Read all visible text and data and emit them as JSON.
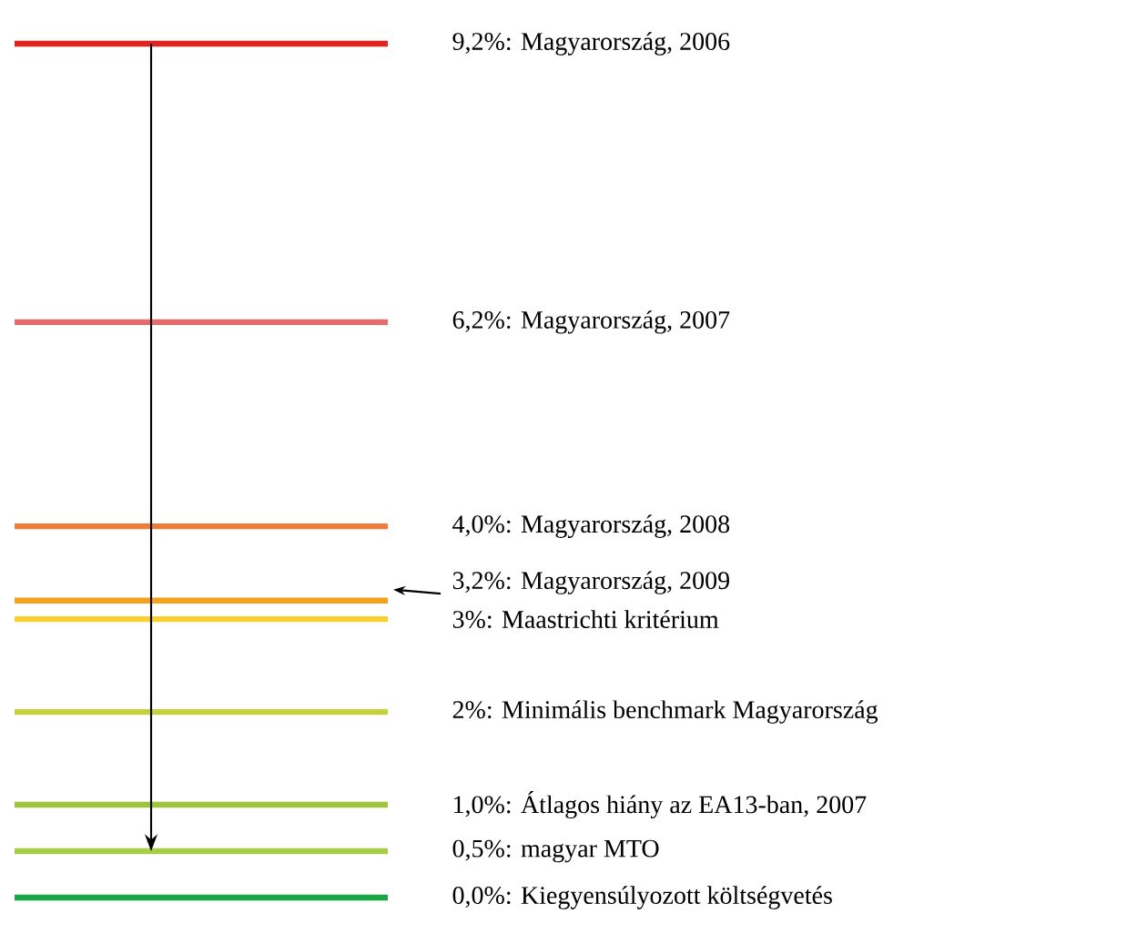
{
  "chart_data": {
    "type": "other",
    "categories": [
      "Magyarország, 2006",
      "Magyarország, 2007",
      "Magyarország, 2008",
      "Magyarország, 2009",
      "Maastrichti kritérium",
      "Minimális benchmark Magyarország",
      "Átlagos hiány az EA13-ban, 2007",
      "magyar MTO",
      "Kiegyensúlyozott költségvetés"
    ],
    "values": [
      9.2,
      6.2,
      4.0,
      3.2,
      3,
      2,
      1.0,
      0.5,
      0.0
    ],
    "value_labels": [
      "9,2%:",
      "6,2%:",
      "4,0%:",
      "3,2%:",
      "3%:",
      "2%:",
      "1,0%:",
      "0,5%:",
      "0,0%:"
    ],
    "colors": [
      "#e52421",
      "#ea6a6a",
      "#ee7d3a",
      "#f3a21c",
      "#fbcf2c",
      "#c6d23a",
      "#9dc43c",
      "#a7cc48",
      "#1aa846"
    ]
  }
}
